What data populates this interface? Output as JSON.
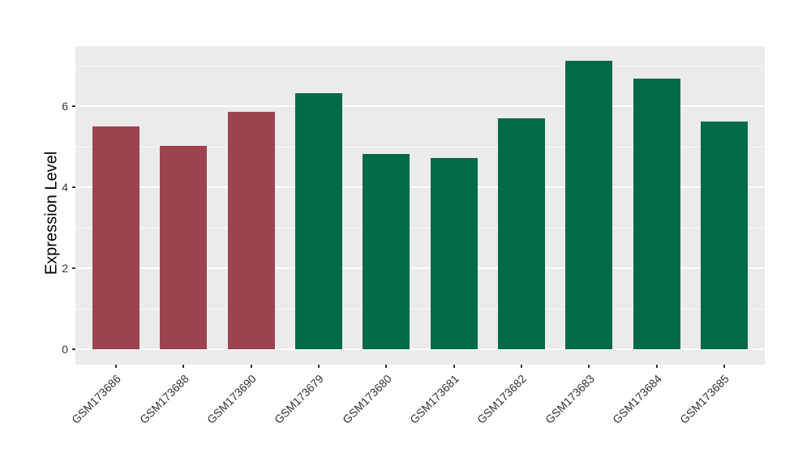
{
  "chart_data": {
    "type": "bar",
    "title": "",
    "xlabel": "",
    "ylabel": "Expression Level",
    "categories": [
      "GSM173686",
      "GSM173688",
      "GSM173690",
      "GSM173679",
      "GSM173680",
      "GSM173681",
      "GSM173682",
      "GSM173683",
      "GSM173684",
      "GSM173685"
    ],
    "values": [
      5.5,
      5.02,
      5.87,
      6.33,
      4.83,
      4.72,
      5.7,
      7.12,
      6.68,
      5.63
    ],
    "bar_colors": [
      "#9B4450",
      "#9B4450",
      "#9B4450",
      "#006A49",
      "#006A49",
      "#006A49",
      "#006A49",
      "#006A49",
      "#006A49",
      "#006A49"
    ],
    "yticks": [
      0,
      2,
      4,
      6
    ],
    "minor_gridlines": [
      1,
      3,
      5,
      7
    ],
    "ylim": [
      -0.38,
      7.48
    ],
    "bar_width_fraction": 0.7,
    "grid": "on",
    "legend_position": "none",
    "colors": {
      "panel_background": "#EBEBEB",
      "gridline": "#FFFFFF",
      "tick_text": "#333333",
      "axis_title_text": "#000000",
      "figure_background": "#FFFFFF",
      "group1_maroon": "#9B4450",
      "group2_green": "#006A49"
    }
  }
}
